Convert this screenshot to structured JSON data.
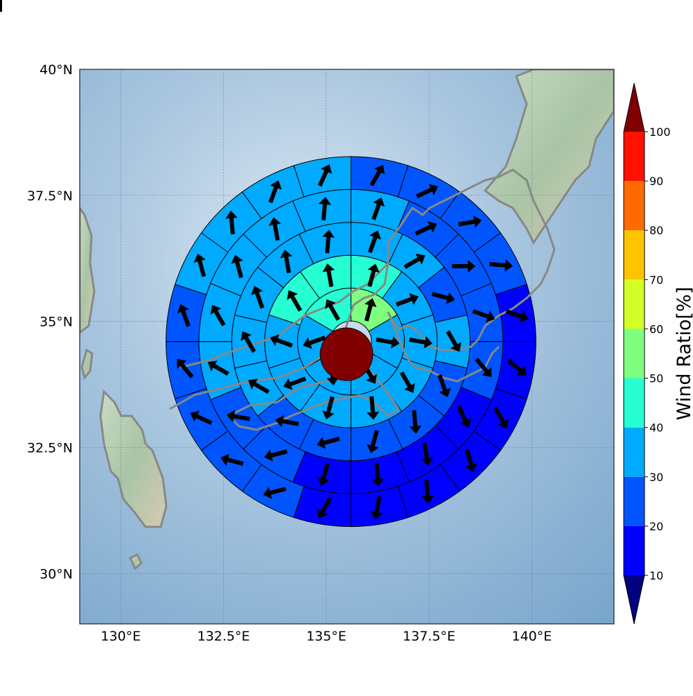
{
  "chart_data": {
    "type": "heatmap",
    "subtype": "polar-sector map with wind-direction arrows",
    "map": {
      "lon_range": [
        129.0,
        142.0
      ],
      "lat_range": [
        29.0,
        40.0
      ],
      "gridlines": true,
      "x_ticks": [
        130.0,
        132.5,
        135.0,
        137.5,
        140.0
      ],
      "y_ticks": [
        30.0,
        32.5,
        35.0,
        37.5,
        40.0
      ],
      "x_tick_labels": [
        "130°E",
        "132.5°E",
        "135°E",
        "137.5°E",
        "140°E"
      ],
      "y_tick_labels": [
        "30°N",
        "32.5°N",
        "35°N",
        "37.5°N",
        "40°N"
      ]
    },
    "center": {
      "lon": 135.6,
      "lat": 34.6,
      "value_color": "#800000"
    },
    "ring_boundaries_deg": [
      0.5,
      1.3,
      2.1,
      2.9,
      3.7,
      4.5
    ],
    "rings": [
      {
        "sectors": [
          {
            "c": "#7fff7f",
            "d": 15
          },
          {
            "c": "#00aaff",
            "d": 100
          },
          {
            "c": "#00aaff",
            "d": 150
          },
          {
            "c": "#00aaff",
            "d": 175
          },
          {
            "c": "#00aaff",
            "d": 250
          },
          {
            "c": "#26ffd4",
            "d": 330
          }
        ]
      },
      {
        "sectors": [
          {
            "c": "#26ffd4",
            "d": 15
          },
          {
            "c": "#00aaff",
            "d": 70
          },
          {
            "c": "#00aaff",
            "d": 100
          },
          {
            "c": "#00aaff",
            "d": 150
          },
          {
            "c": "#00aaff",
            "d": 175
          },
          {
            "c": "#00aaff",
            "d": 195
          },
          {
            "c": "#00aaff",
            "d": 250
          },
          {
            "c": "#00aaff",
            "d": 290
          },
          {
            "c": "#26ffd4",
            "d": 330
          },
          {
            "c": "#26ffd4",
            "d": 350
          }
        ]
      },
      {
        "sectors": [
          {
            "c": "#00aaff",
            "d": 20
          },
          {
            "c": "#00aaff",
            "d": 60
          },
          {
            "c": "#0055ff",
            "d": 105
          },
          {
            "c": "#00aaff",
            "d": 150
          },
          {
            "c": "#0055ff",
            "d": 160
          },
          {
            "c": "#0055ff",
            "d": 175
          },
          {
            "c": "#0055ff",
            "d": 195
          },
          {
            "c": "#0055ff",
            "d": 255
          },
          {
            "c": "#0055ff",
            "d": 280
          },
          {
            "c": "#00aaff",
            "d": 300
          },
          {
            "c": "#00aaff",
            "d": 330
          },
          {
            "c": "#00aaff",
            "d": 340
          },
          {
            "c": "#00aaff",
            "d": 350
          },
          {
            "c": "#00aaff",
            "d": 5
          }
        ]
      },
      {
        "sectors": [
          {
            "c": "#00aaff",
            "d": 20
          },
          {
            "c": "#0055ff",
            "d": 65
          },
          {
            "c": "#0055ff",
            "d": 90
          },
          {
            "c": "#0055ff",
            "d": 110
          },
          {
            "c": "#0055ff",
            "d": 140
          },
          {
            "c": "#0000ff",
            "d": 155
          },
          {
            "c": "#0000ff",
            "d": 170
          },
          {
            "c": "#0000ff",
            "d": 175
          },
          {
            "c": "#0000ff",
            "d": 195
          },
          {
            "c": "#0055ff",
            "d": 255
          },
          {
            "c": "#0055ff",
            "d": 280
          },
          {
            "c": "#00aaff",
            "d": 300
          },
          {
            "c": "#00aaff",
            "d": 330
          },
          {
            "c": "#00aaff",
            "d": 345
          },
          {
            "c": "#00aaff",
            "d": 350
          },
          {
            "c": "#00aaff",
            "d": 5
          }
        ]
      },
      {
        "sectors": [
          {
            "c": "#0055ff",
            "d": 30
          },
          {
            "c": "#0055ff",
            "d": 65
          },
          {
            "c": "#0055ff",
            "d": 80
          },
          {
            "c": "#0055ff",
            "d": 95
          },
          {
            "c": "#0000ff",
            "d": 110
          },
          {
            "c": "#0000ff",
            "d": 130
          },
          {
            "c": "#0000ff",
            "d": 150
          },
          {
            "c": "#0000ff",
            "d": 165
          },
          {
            "c": "#0000ff",
            "d": 175
          },
          {
            "c": "#0000ff",
            "d": 190
          },
          {
            "c": "#0000ff",
            "d": 210
          },
          {
            "c": "#0055ff",
            "d": 255
          },
          {
            "c": "#0055ff",
            "d": 285
          },
          {
            "c": "#0055ff",
            "d": 295
          },
          {
            "c": "#0055ff",
            "d": 320
          },
          {
            "c": "#0055ff",
            "d": 340
          },
          {
            "c": "#00aaff",
            "d": 345
          },
          {
            "c": "#00aaff",
            "d": 355
          },
          {
            "c": "#00aaff",
            "d": 20
          },
          {
            "c": "#00aaff",
            "d": 25
          }
        ]
      },
      {
        "sectors": [
          {
            "c": "#0055ff",
            "d": 30
          },
          {
            "c": "#0055ff",
            "d": 80
          },
          {
            "c": "#0055ff",
            "d": 85
          },
          {
            "c": "#0055ff",
            "d": 100
          },
          {
            "c": "#0000ff",
            "d": 105
          },
          {
            "c": "#0000ff",
            "d": 115
          },
          {
            "c": "#0000ff",
            "d": 150
          },
          {
            "c": "#000080",
            "d": 160
          },
          {
            "c": "#0000ff",
            "d": 165
          },
          {
            "c": "#0000ff",
            "d": 165
          },
          {
            "c": "#0000ff",
            "d": 190
          },
          {
            "c": "#0000ff",
            "d": 205
          },
          {
            "c": "#0000ff",
            "d": 210
          },
          {
            "c": "#0000ff",
            "d": 255
          },
          {
            "c": "#0055ff",
            "d": 280
          },
          {
            "c": "#0055ff",
            "d": 295
          },
          {
            "c": "#0055ff",
            "d": 305
          },
          {
            "c": "#0055ff",
            "d": 335
          },
          {
            "c": "#0055ff",
            "d": 345
          },
          {
            "c": "#0055ff",
            "d": 350
          },
          {
            "c": "#00aaff",
            "d": 355
          },
          {
            "c": "#00aaff",
            "d": 20
          },
          {
            "c": "#00aaff",
            "d": 30
          },
          {
            "c": "#0055ff",
            "d": 30
          }
        ]
      }
    ],
    "colorbar": {
      "label": "Wind Ratio[%]",
      "ticks": [
        "10",
        "20",
        "30",
        "40",
        "50",
        "60",
        "70",
        "80",
        "90",
        "100"
      ],
      "bins": [
        {
          "range": [
            10,
            20
          ],
          "color": "#0000ff"
        },
        {
          "range": [
            20,
            30
          ],
          "color": "#0055ff"
        },
        {
          "range": [
            30,
            40
          ],
          "color": "#00aaff"
        },
        {
          "range": [
            40,
            50
          ],
          "color": "#26ffd4"
        },
        {
          "range": [
            50,
            60
          ],
          "color": "#7fff7f"
        },
        {
          "range": [
            60,
            70
          ],
          "color": "#d4ff26"
        },
        {
          "range": [
            70,
            80
          ],
          "color": "#ffc400"
        },
        {
          "range": [
            80,
            90
          ],
          "color": "#ff6a00"
        },
        {
          "range": [
            90,
            100
          ],
          "color": "#ff1100"
        }
      ],
      "under_color": "#000080",
      "over_color": "#800000"
    }
  }
}
